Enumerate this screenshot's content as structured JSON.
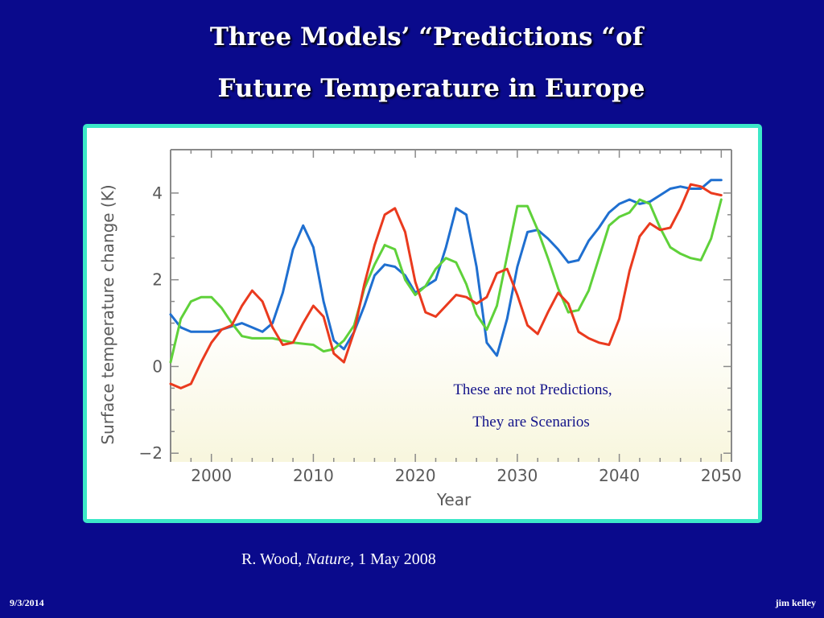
{
  "slide": {
    "title_line_1": "Three Models’  “Predictions “of",
    "title_line_2": "Future Temperature in Europe",
    "annotation_line_1": "These are not Predictions,",
    "annotation_line_2": "They are Scenarios",
    "citation_author": "R. Wood, ",
    "citation_journal": "Nature",
    "citation_date": ", 1 May 2008",
    "footer_date": "9/3/2014",
    "footer_author": "jim kelley"
  },
  "colors": {
    "background": "#0a0a8c",
    "frame_border": "#3ce8c8",
    "series_blue": "#1f6fd0",
    "series_green": "#5fd13a",
    "series_red": "#ea3a1e"
  },
  "chart_data": {
    "type": "line",
    "xlabel": "Year",
    "ylabel": "Surface temperature change (K)",
    "xlim": [
      1996,
      2051
    ],
    "ylim": [
      -2.2,
      5.0
    ],
    "x_ticks": [
      2000,
      2010,
      2020,
      2030,
      2040,
      2050
    ],
    "y_ticks": [
      -2,
      0,
      2,
      4
    ],
    "grid": false,
    "series": [
      {
        "color": "#1f6fd0",
        "x": [
          1996,
          1997,
          1998,
          2000,
          2001,
          2003,
          2004,
          2005,
          2006,
          2007,
          2008,
          2009,
          2010,
          2011,
          2012,
          2013,
          2014,
          2015,
          2016,
          2017,
          2018,
          2019,
          2020,
          2022,
          2023,
          2024,
          2025,
          2026,
          2027,
          2028,
          2029,
          2030,
          2031,
          2032,
          2033,
          2034,
          2035,
          2036,
          2037,
          2038,
          2039,
          2040,
          2041,
          2042,
          2043,
          2044,
          2045,
          2046,
          2047,
          2048,
          2049,
          2050
        ],
        "y": [
          1.2,
          0.9,
          0.8,
          0.8,
          0.85,
          1.0,
          0.9,
          0.8,
          1.0,
          1.7,
          2.7,
          3.25,
          2.75,
          1.5,
          0.6,
          0.4,
          0.8,
          1.4,
          2.1,
          2.35,
          2.3,
          2.1,
          1.7,
          2.0,
          2.75,
          3.65,
          3.5,
          2.3,
          0.55,
          0.25,
          1.1,
          2.3,
          3.1,
          3.15,
          2.95,
          2.7,
          2.4,
          2.45,
          2.9,
          3.2,
          3.55,
          3.75,
          3.85,
          3.75,
          3.8,
          3.95,
          4.1,
          4.15,
          4.1,
          4.1,
          4.3,
          4.3
        ]
      },
      {
        "color": "#5fd13a",
        "x": [
          1996,
          1997,
          1998,
          1999,
          2000,
          2001,
          2002,
          2003,
          2004,
          2006,
          2008,
          2010,
          2011,
          2012,
          2013,
          2014,
          2015,
          2016,
          2017,
          2018,
          2019,
          2020,
          2021,
          2022,
          2023,
          2024,
          2025,
          2026,
          2027,
          2028,
          2029,
          2030,
          2031,
          2032,
          2033,
          2034,
          2035,
          2036,
          2037,
          2038,
          2039,
          2040,
          2041,
          2042,
          2043,
          2044,
          2045,
          2046,
          2047,
          2048,
          2049,
          2050
        ],
        "y": [
          0.1,
          1.1,
          1.5,
          1.6,
          1.6,
          1.35,
          1.0,
          0.7,
          0.65,
          0.65,
          0.55,
          0.5,
          0.35,
          0.4,
          0.6,
          0.95,
          1.8,
          2.35,
          2.8,
          2.7,
          2.0,
          1.65,
          1.85,
          2.25,
          2.5,
          2.4,
          1.9,
          1.2,
          0.85,
          1.4,
          2.55,
          3.7,
          3.7,
          3.15,
          2.5,
          1.8,
          1.25,
          1.3,
          1.75,
          2.5,
          3.25,
          3.45,
          3.55,
          3.85,
          3.75,
          3.2,
          2.75,
          2.6,
          2.5,
          2.45,
          2.95,
          3.85
        ]
      },
      {
        "color": "#ea3a1e",
        "x": [
          1996,
          1997,
          1998,
          1999,
          2000,
          2001,
          2002,
          2003,
          2004,
          2005,
          2006,
          2007,
          2008,
          2009,
          2010,
          2011,
          2012,
          2013,
          2014,
          2015,
          2016,
          2017,
          2018,
          2019,
          2020,
          2021,
          2022,
          2024,
          2025,
          2026,
          2027,
          2028,
          2029,
          2030,
          2031,
          2032,
          2033,
          2034,
          2035,
          2036,
          2037,
          2038,
          2039,
          2040,
          2041,
          2042,
          2043,
          2044,
          2045,
          2046,
          2047,
          2048,
          2049,
          2050
        ],
        "y": [
          -0.4,
          -0.5,
          -0.4,
          0.1,
          0.55,
          0.85,
          0.95,
          1.4,
          1.75,
          1.5,
          0.9,
          0.5,
          0.55,
          1.0,
          1.4,
          1.15,
          0.3,
          0.1,
          0.8,
          1.9,
          2.8,
          3.5,
          3.65,
          3.1,
          1.95,
          1.25,
          1.15,
          1.65,
          1.6,
          1.45,
          1.6,
          2.15,
          2.25,
          1.65,
          0.95,
          0.75,
          1.25,
          1.7,
          1.45,
          0.8,
          0.65,
          0.55,
          0.5,
          1.1,
          2.2,
          3.0,
          3.3,
          3.15,
          3.2,
          3.65,
          4.2,
          4.15,
          4.0,
          3.95
        ]
      }
    ]
  }
}
